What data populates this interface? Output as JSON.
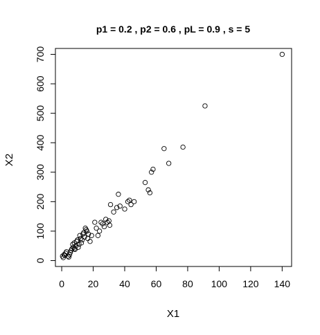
{
  "chart_data": {
    "type": "scatter",
    "title": "p1 = 0.2 ,  p2 = 0.6 ,  pL = 0.9 , s = 5",
    "xlabel": "X1",
    "ylabel": "X2",
    "xlim": [
      -4,
      146
    ],
    "ylim": [
      -20,
      720
    ],
    "xticks": [
      0,
      20,
      40,
      60,
      80,
      100,
      120,
      140
    ],
    "yticks": [
      0,
      100,
      200,
      300,
      400,
      500,
      600,
      700
    ],
    "grid": false,
    "legend": "none",
    "point_style": "open-circle",
    "x": [
      0.5,
      1,
      1.5,
      2,
      2.5,
      3,
      4,
      4.5,
      5,
      5.5,
      6,
      6.5,
      7,
      7.5,
      8,
      8,
      8.5,
      9,
      9.5,
      10,
      10.5,
      11,
      11.5,
      12,
      12.5,
      13,
      13.5,
      14,
      14.5,
      15,
      15.5,
      16,
      16.5,
      17,
      18,
      19,
      21,
      22,
      23,
      24,
      25,
      26,
      27,
      28,
      29,
      30,
      30.5,
      31,
      33,
      35,
      36,
      37,
      40,
      42,
      43,
      44,
      46,
      53,
      55,
      56,
      57,
      58,
      65,
      68,
      77,
      91,
      140
    ],
    "y": [
      15,
      10,
      20,
      18,
      25,
      30,
      15,
      12,
      20,
      28,
      35,
      40,
      55,
      45,
      60,
      40,
      38,
      50,
      65,
      70,
      45,
      55,
      85,
      75,
      60,
      70,
      90,
      95,
      80,
      110,
      105,
      100,
      75,
      90,
      65,
      85,
      130,
      110,
      85,
      100,
      130,
      125,
      115,
      140,
      130,
      135,
      120,
      190,
      165,
      180,
      225,
      185,
      175,
      200,
      205,
      190,
      200,
      265,
      240,
      230,
      300,
      310,
      380,
      330,
      385,
      525,
      700
    ]
  }
}
